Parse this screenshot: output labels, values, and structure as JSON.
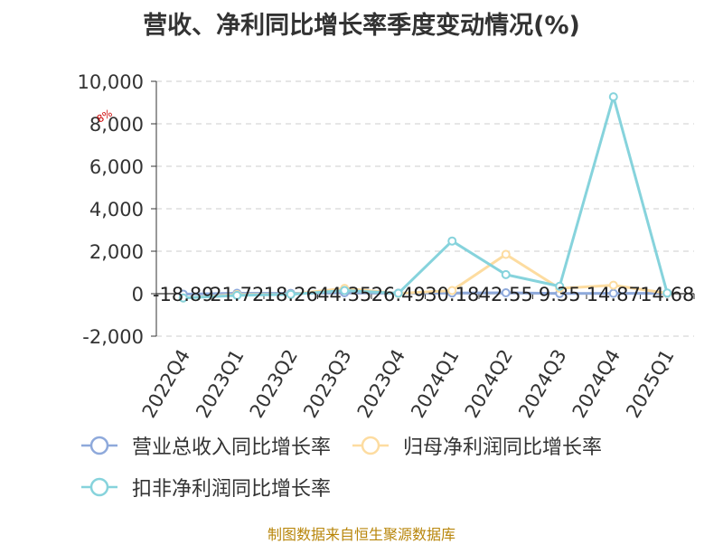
{
  "title": "营收、净利同比增长率季度变动情况(%)",
  "source": "制图数据来自恒生聚源数据库",
  "colors": {
    "source": "#b8860b",
    "note": "#cc0000"
  },
  "chart_data": {
    "type": "line",
    "categories": [
      "2022Q4",
      "2023Q1",
      "2023Q2",
      "2023Q3",
      "2023Q4",
      "2024Q1",
      "2024Q2",
      "2024Q3",
      "2024Q4",
      "2025Q1"
    ],
    "y_ticks": [
      -2000,
      0,
      2000,
      4000,
      6000,
      8000,
      10000
    ],
    "ylim": [
      -2000,
      10000
    ],
    "grid": true,
    "legend_position": "bottom",
    "annotation": "8%",
    "series": [
      {
        "name": "营业总收入同比增长率",
        "color": "#8ea9db",
        "values": [
          -18.89,
          21.72,
          18.26,
          44.35,
          26.49,
          30.18,
          42.55,
          9.35,
          14.87,
          14.68
        ],
        "labels": [
          "-18.89",
          "21.72",
          "18.26",
          "44.35",
          "26.49",
          "30.18",
          "42.55",
          "9.35",
          "14.87",
          "14.68"
        ]
      },
      {
        "name": "归母净利润同比增长率",
        "color": "#fddca0",
        "values": [
          -200,
          -40,
          -30,
          250,
          10,
          150,
          1850,
          250,
          400,
          20
        ]
      },
      {
        "name": "扣非净利润同比增长率",
        "color": "#86d3dc",
        "values": [
          -200,
          -80,
          -30,
          150,
          20,
          2480,
          900,
          350,
          9270,
          30
        ]
      }
    ]
  }
}
